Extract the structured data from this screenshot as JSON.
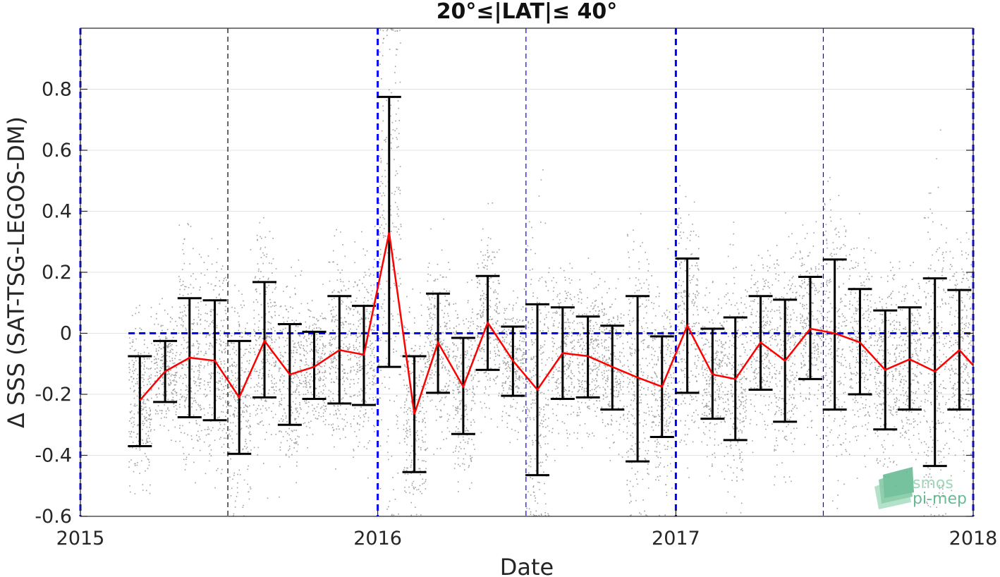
{
  "chart_data": {
    "type": "scatter",
    "title": "20°≤|LAT|≤ 40°",
    "xlabel": "Date",
    "ylabel": "Δ SSS (SAT-TSG-LEGOS-DM)",
    "xlim": [
      "2015-01-01",
      "2018-01-01"
    ],
    "ylim": [
      -0.6,
      1.0
    ],
    "x_ticks": [
      "2015",
      "2016",
      "2017",
      "2018"
    ],
    "y_ticks": [
      "-0.6",
      "-0.4",
      "-0.2",
      "0",
      "0.2",
      "0.4",
      "0.6",
      "0.8"
    ],
    "y_tick_values": [
      -0.6,
      -0.4,
      -0.2,
      0,
      0.2,
      0.4,
      0.6,
      0.8
    ],
    "grid": "horizontal",
    "colors": {
      "mean_line": "#ff0000",
      "error_bars": "#000000",
      "points": "#7f7f7f",
      "reference_lines": "#0000ff",
      "logo": "#5fb88f"
    },
    "zero_line": {
      "y": 0,
      "x_start": "2015-03-01",
      "x_end": "2018-01-01",
      "style": "dashed",
      "color": "#0000ff"
    },
    "vertical_lines": [
      {
        "x": "2015-01-01",
        "style": "thick-dashed",
        "color": "#0000ff"
      },
      {
        "x": "2015-07-01",
        "style": "thin-dashed",
        "color": "#000000"
      },
      {
        "x": "2016-01-01",
        "style": "thick-dashed",
        "color": "#0000ff"
      },
      {
        "x": "2016-07-01",
        "style": "thin-dashed",
        "color": "#0000ff"
      },
      {
        "x": "2017-01-01",
        "style": "thick-dashed",
        "color": "#0000ff"
      },
      {
        "x": "2017-07-01",
        "style": "thin-dashed",
        "color": "#0000ff"
      },
      {
        "x": "2018-01-01",
        "style": "thick-dashed",
        "color": "#0000ff"
      }
    ],
    "series": [
      {
        "name": "",
        "type": "line-errorbar",
        "points": [
          {
            "x": "2015-03-15",
            "mean": -0.22,
            "low": -0.37,
            "high": -0.075
          },
          {
            "x": "2015-04-15",
            "mean": -0.125,
            "low": -0.225,
            "high": -0.025
          },
          {
            "x": "2015-05-15",
            "mean": -0.08,
            "low": -0.275,
            "high": 0.115
          },
          {
            "x": "2015-06-15",
            "mean": -0.09,
            "low": -0.285,
            "high": 0.108
          },
          {
            "x": "2015-07-15",
            "mean": -0.21,
            "low": -0.395,
            "high": -0.025
          },
          {
            "x": "2015-08-15",
            "mean": -0.025,
            "low": -0.21,
            "high": 0.168
          },
          {
            "x": "2015-09-15",
            "mean": -0.135,
            "low": -0.3,
            "high": 0.03
          },
          {
            "x": "2015-10-15",
            "mean": -0.11,
            "low": -0.215,
            "high": 0.005
          },
          {
            "x": "2015-11-15",
            "mean": -0.055,
            "low": -0.23,
            "high": 0.122
          },
          {
            "x": "2015-12-15",
            "mean": -0.07,
            "low": -0.235,
            "high": 0.09
          },
          {
            "x": "2016-01-15",
            "mean": 0.33,
            "low": -0.11,
            "high": 0.775
          },
          {
            "x": "2016-02-15",
            "mean": -0.265,
            "low": -0.455,
            "high": -0.075
          },
          {
            "x": "2016-03-15",
            "mean": -0.03,
            "low": -0.195,
            "high": 0.13
          },
          {
            "x": "2016-04-15",
            "mean": -0.175,
            "low": -0.33,
            "high": -0.015
          },
          {
            "x": "2016-05-15",
            "mean": 0.035,
            "low": -0.12,
            "high": 0.188
          },
          {
            "x": "2016-06-15",
            "mean": -0.09,
            "low": -0.205,
            "high": 0.022
          },
          {
            "x": "2016-07-15",
            "mean": -0.185,
            "low": -0.465,
            "high": 0.095
          },
          {
            "x": "2016-08-15",
            "mean": -0.065,
            "low": -0.215,
            "high": 0.085
          },
          {
            "x": "2016-09-15",
            "mean": -0.075,
            "low": -0.21,
            "high": 0.055
          },
          {
            "x": "2016-10-15",
            "mean": -0.11,
            "low": -0.25,
            "high": 0.025
          },
          {
            "x": "2016-11-15",
            "mean": -0.145,
            "low": -0.42,
            "high": 0.122
          },
          {
            "x": "2016-12-15",
            "mean": -0.175,
            "low": -0.34,
            "high": -0.01
          },
          {
            "x": "2017-01-15",
            "mean": 0.025,
            "low": -0.195,
            "high": 0.245
          },
          {
            "x": "2017-02-15",
            "mean": -0.135,
            "low": -0.28,
            "high": 0.015
          },
          {
            "x": "2017-03-15",
            "mean": -0.15,
            "low": -0.35,
            "high": 0.052
          },
          {
            "x": "2017-04-15",
            "mean": -0.03,
            "low": -0.185,
            "high": 0.122
          },
          {
            "x": "2017-05-15",
            "mean": -0.09,
            "low": -0.29,
            "high": 0.11
          },
          {
            "x": "2017-06-15",
            "mean": 0.015,
            "low": -0.15,
            "high": 0.185
          },
          {
            "x": "2017-07-15",
            "mean": 0.0,
            "low": -0.25,
            "high": 0.242
          },
          {
            "x": "2017-08-15",
            "mean": -0.03,
            "low": -0.2,
            "high": 0.145
          },
          {
            "x": "2017-09-15",
            "mean": -0.12,
            "low": -0.315,
            "high": 0.075
          },
          {
            "x": "2017-10-15",
            "mean": -0.085,
            "low": -0.25,
            "high": 0.085
          },
          {
            "x": "2017-11-15",
            "mean": -0.125,
            "low": -0.435,
            "high": 0.18
          },
          {
            "x": "2017-12-15",
            "mean": -0.055,
            "low": -0.25,
            "high": 0.142
          },
          {
            "x": "2018-01-01",
            "mean": -0.105
          }
        ]
      }
    ],
    "scatter_note_hidden": false
  },
  "logo": {
    "line1": "smos",
    "line2": "pi-mep"
  }
}
